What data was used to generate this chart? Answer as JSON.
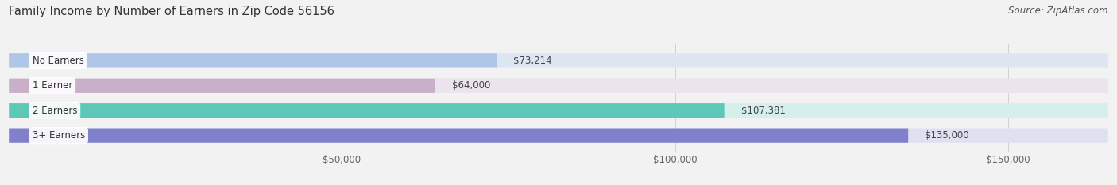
{
  "title": "Family Income by Number of Earners in Zip Code 56156",
  "source": "Source: ZipAtlas.com",
  "categories": [
    "No Earners",
    "1 Earner",
    "2 Earners",
    "3+ Earners"
  ],
  "values": [
    73214,
    64000,
    107381,
    135000
  ],
  "labels": [
    "$73,214",
    "$64,000",
    "$107,381",
    "$135,000"
  ],
  "bar_colors": [
    "#aec6e8",
    "#c9afc8",
    "#5ec8b8",
    "#8080cc"
  ],
  "bar_bg_colors": [
    "#dde6f2",
    "#ebe3ee",
    "#d5f0ec",
    "#e0e0f0"
  ],
  "xlim": [
    0,
    165000
  ],
  "xticks": [
    50000,
    100000,
    150000
  ],
  "xtick_labels": [
    "$50,000",
    "$100,000",
    "$150,000"
  ],
  "title_fontsize": 10.5,
  "source_fontsize": 8.5,
  "label_fontsize": 8.5,
  "category_fontsize": 8.5,
  "background_color": "#f2f2f2",
  "bar_height": 0.58,
  "title_color": "#333333",
  "source_color": "#555555",
  "tick_color": "#666666"
}
